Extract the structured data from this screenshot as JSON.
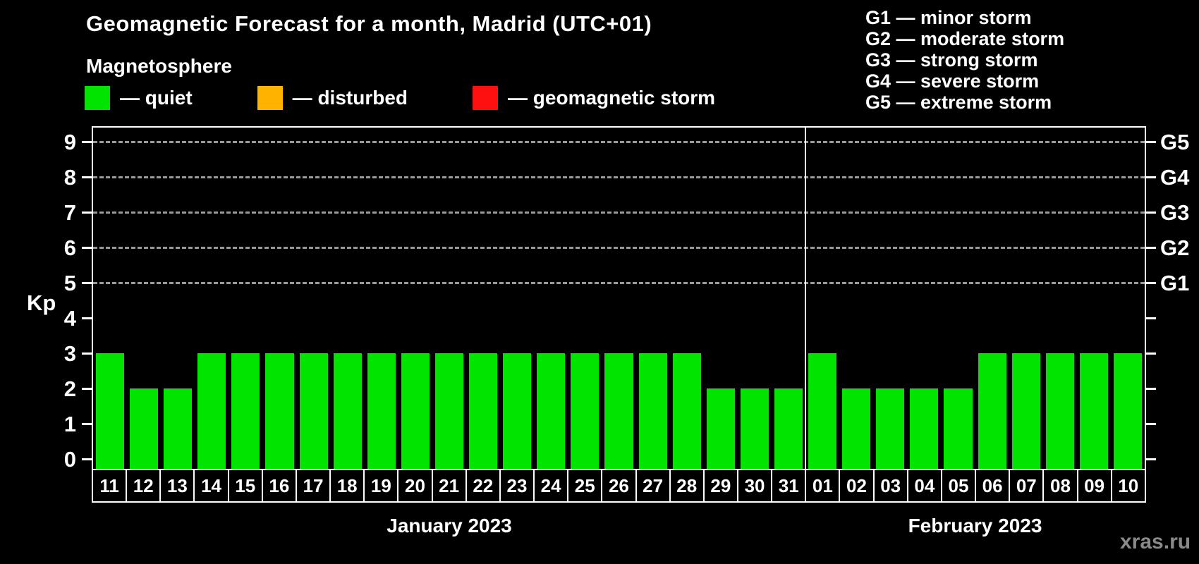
{
  "title": "Geomagnetic Forecast for a month, Madrid (UTC+01)",
  "subtitle": "Magnetosphere",
  "legend": {
    "items": [
      {
        "name": "quiet",
        "label": "— quiet",
        "color": "#00e400"
      },
      {
        "name": "disturbed",
        "label": "— disturbed",
        "color": "#ffb300"
      },
      {
        "name": "geomagnetic-storm",
        "label": "— geomagnetic storm",
        "color": "#ff1010"
      }
    ]
  },
  "storm_scale": [
    {
      "text": "G1 — minor storm"
    },
    {
      "text": "G2 — moderate storm"
    },
    {
      "text": "G3 — strong storm"
    },
    {
      "text": "G4 — severe storm"
    },
    {
      "text": "G5 — extreme storm"
    }
  ],
  "watermark": "xras.ru",
  "chart_data": {
    "type": "bar",
    "title": "Geomagnetic Forecast for a month, Madrid (UTC+01)",
    "xlabel": "",
    "ylabel": "Kp",
    "ylim": [
      0,
      9
    ],
    "yticks": [
      0,
      1,
      2,
      3,
      4,
      5,
      6,
      7,
      8,
      9
    ],
    "grid_levels": [
      5,
      6,
      7,
      8,
      9
    ],
    "grid_style": "dashed",
    "legend_position": "top",
    "right_axis": [
      {
        "label": "G1",
        "value": 5
      },
      {
        "label": "G2",
        "value": 6
      },
      {
        "label": "G3",
        "value": 7
      },
      {
        "label": "G4",
        "value": 8
      },
      {
        "label": "G5",
        "value": 9
      }
    ],
    "bar_color": "#00e400",
    "months": [
      {
        "label": "January 2023",
        "days": [
          "11",
          "12",
          "13",
          "14",
          "15",
          "16",
          "17",
          "18",
          "19",
          "20",
          "21",
          "22",
          "23",
          "24",
          "25",
          "26",
          "27",
          "28",
          "29",
          "30",
          "31"
        ],
        "values": [
          3,
          2,
          2,
          3,
          3,
          3,
          3,
          3,
          3,
          3,
          3,
          3,
          3,
          3,
          3,
          3,
          3,
          3,
          2,
          2,
          2
        ]
      },
      {
        "label": "February 2023",
        "days": [
          "01",
          "02",
          "03",
          "04",
          "05",
          "06",
          "07",
          "08",
          "09",
          "10"
        ],
        "values": [
          3,
          2,
          2,
          2,
          2,
          3,
          3,
          3,
          3,
          3
        ]
      }
    ]
  }
}
